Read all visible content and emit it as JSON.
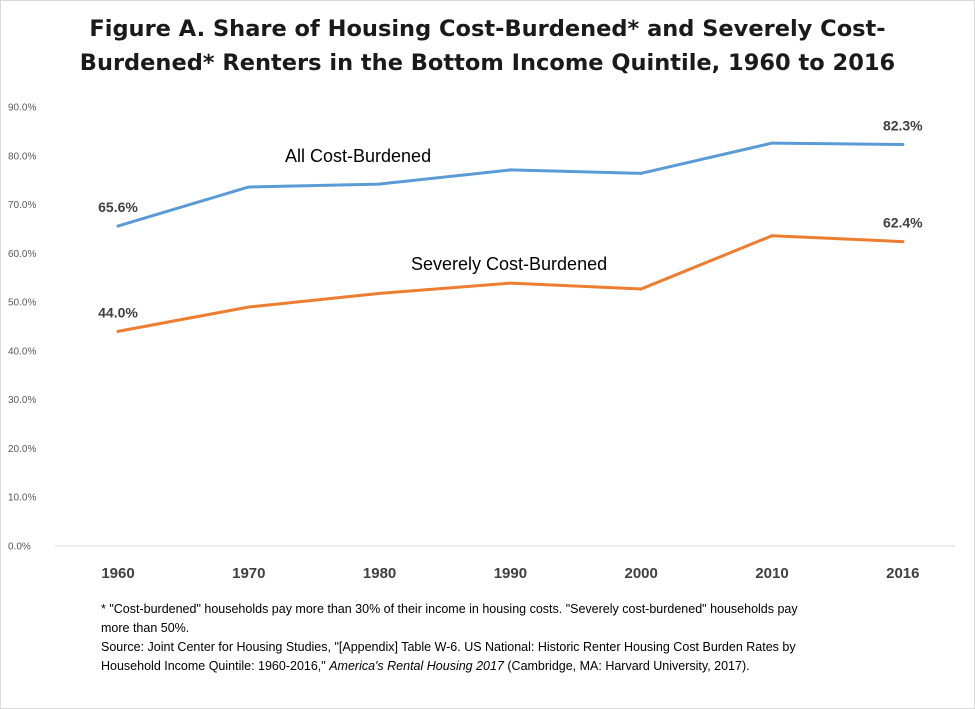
{
  "title_lines": [
    "Figure A. Share of Housing Cost-Burdened* and Severely Cost-",
    "Burdened* Renters in the Bottom Income Quintile, 1960 to 2016"
  ],
  "chart_data": {
    "type": "line",
    "categories": [
      "1960",
      "1970",
      "1980",
      "1990",
      "2000",
      "2010",
      "2016"
    ],
    "ylim": [
      0,
      90
    ],
    "yticks": [
      "0.0%",
      "10.0%",
      "20.0%",
      "30.0%",
      "40.0%",
      "50.0%",
      "60.0%",
      "70.0%",
      "80.0%",
      "90.0%"
    ],
    "grid": false,
    "series": [
      {
        "name": "All Cost-Burdened",
        "color": "#5b9bd5",
        "values": [
          65.6,
          73.6,
          74.2,
          77.1,
          76.4,
          82.6,
          82.3
        ]
      },
      {
        "name": "Severely Cost-Burdened",
        "color": "#ed7d31",
        "values": [
          44.0,
          49.0,
          51.8,
          53.9,
          52.7,
          63.6,
          62.4
        ]
      }
    ],
    "data_labels": [
      {
        "series": 0,
        "index": 0,
        "text": "65.6%"
      },
      {
        "series": 0,
        "index": 6,
        "text": "82.3%"
      },
      {
        "series": 1,
        "index": 0,
        "text": "44.0%"
      },
      {
        "series": 1,
        "index": 6,
        "text": "62.4%"
      }
    ]
  },
  "notes": {
    "footnote_line1": "* \"Cost-burdened\" households pay more than 30% of their income in housing costs. \"Severely cost-burdened\" households pay",
    "footnote_line2": "more than 50%.",
    "source_line1": "Source: Joint Center for Housing Studies, \"[Appendix] Table W-6. US National: Historic Renter Housing Cost Burden Rates by",
    "source_line2_pre": "Household Income Quintile: 1960-2016,\" ",
    "source_line2_italic": "America's Rental Housing 2017",
    "source_line2_post": " (Cambridge, MA: Harvard University, 2017)."
  }
}
